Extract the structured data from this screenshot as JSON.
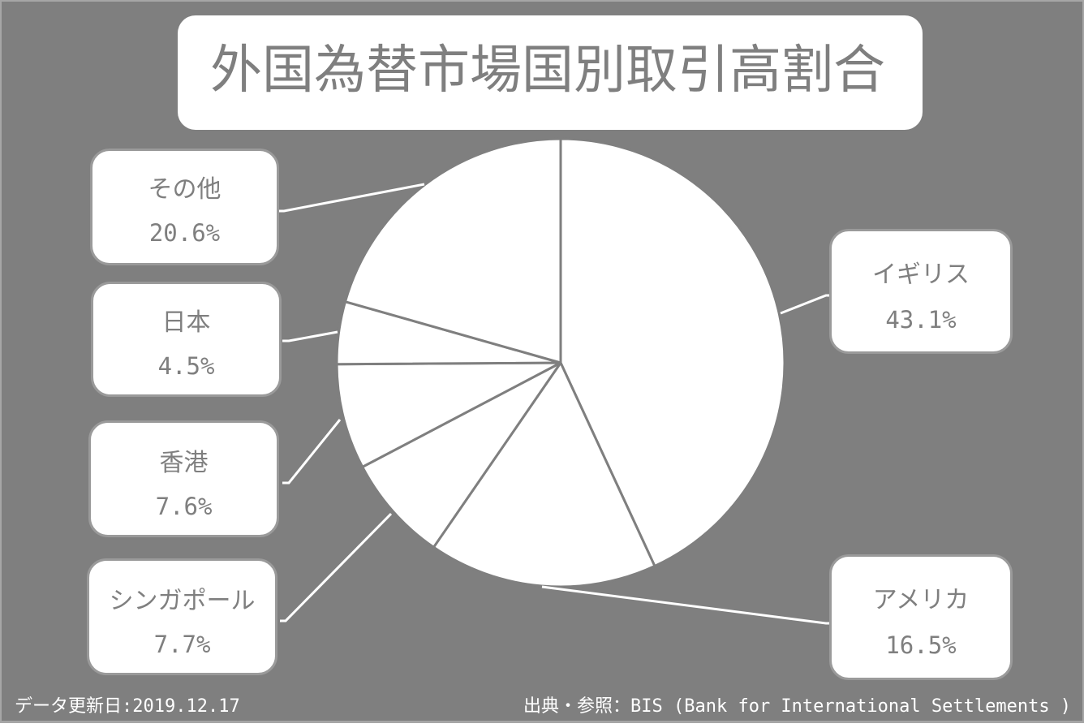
{
  "title": "外国為替市場国別取引高割合",
  "chart_data": {
    "type": "pie",
    "title": "外国為替市場国別取引高割合",
    "unit": "%",
    "start_angle": "12 o'clock, clockwise",
    "slices": [
      {
        "label": "イギリス",
        "value": 43.1,
        "display": "43.1%"
      },
      {
        "label": "アメリカ",
        "value": 16.5,
        "display": "16.5%"
      },
      {
        "label": "シンガポール",
        "value": 7.7,
        "display": "7.7%"
      },
      {
        "label": "香港",
        "value": 7.6,
        "display": "7.6%"
      },
      {
        "label": "日本",
        "value": 4.5,
        "display": "4.5%"
      },
      {
        "label": "その他",
        "value": 20.6,
        "display": "20.6%"
      }
    ],
    "colors": {
      "background": "#7f7f7f",
      "slice_fill": "#ffffff",
      "slice_border": "#7f7f7f",
      "text": "#7f7f7f"
    },
    "legend": "none (callout boxes with leader lines)"
  },
  "labels": {
    "uk": {
      "name": "イギリス",
      "value": "43.1%"
    },
    "us": {
      "name": "アメリカ",
      "value": "16.5%"
    },
    "sg": {
      "name": "シンガポール",
      "value": "7.7%"
    },
    "hk": {
      "name": "香港",
      "value": "7.6%"
    },
    "jp": {
      "name": "日本",
      "value": "4.5%"
    },
    "other": {
      "name": "その他",
      "value": "20.6%"
    }
  },
  "footer": {
    "updated": "データ更新日:2019.12.17",
    "source": "出典・参照：BIS (Bank for International Settlements )"
  }
}
